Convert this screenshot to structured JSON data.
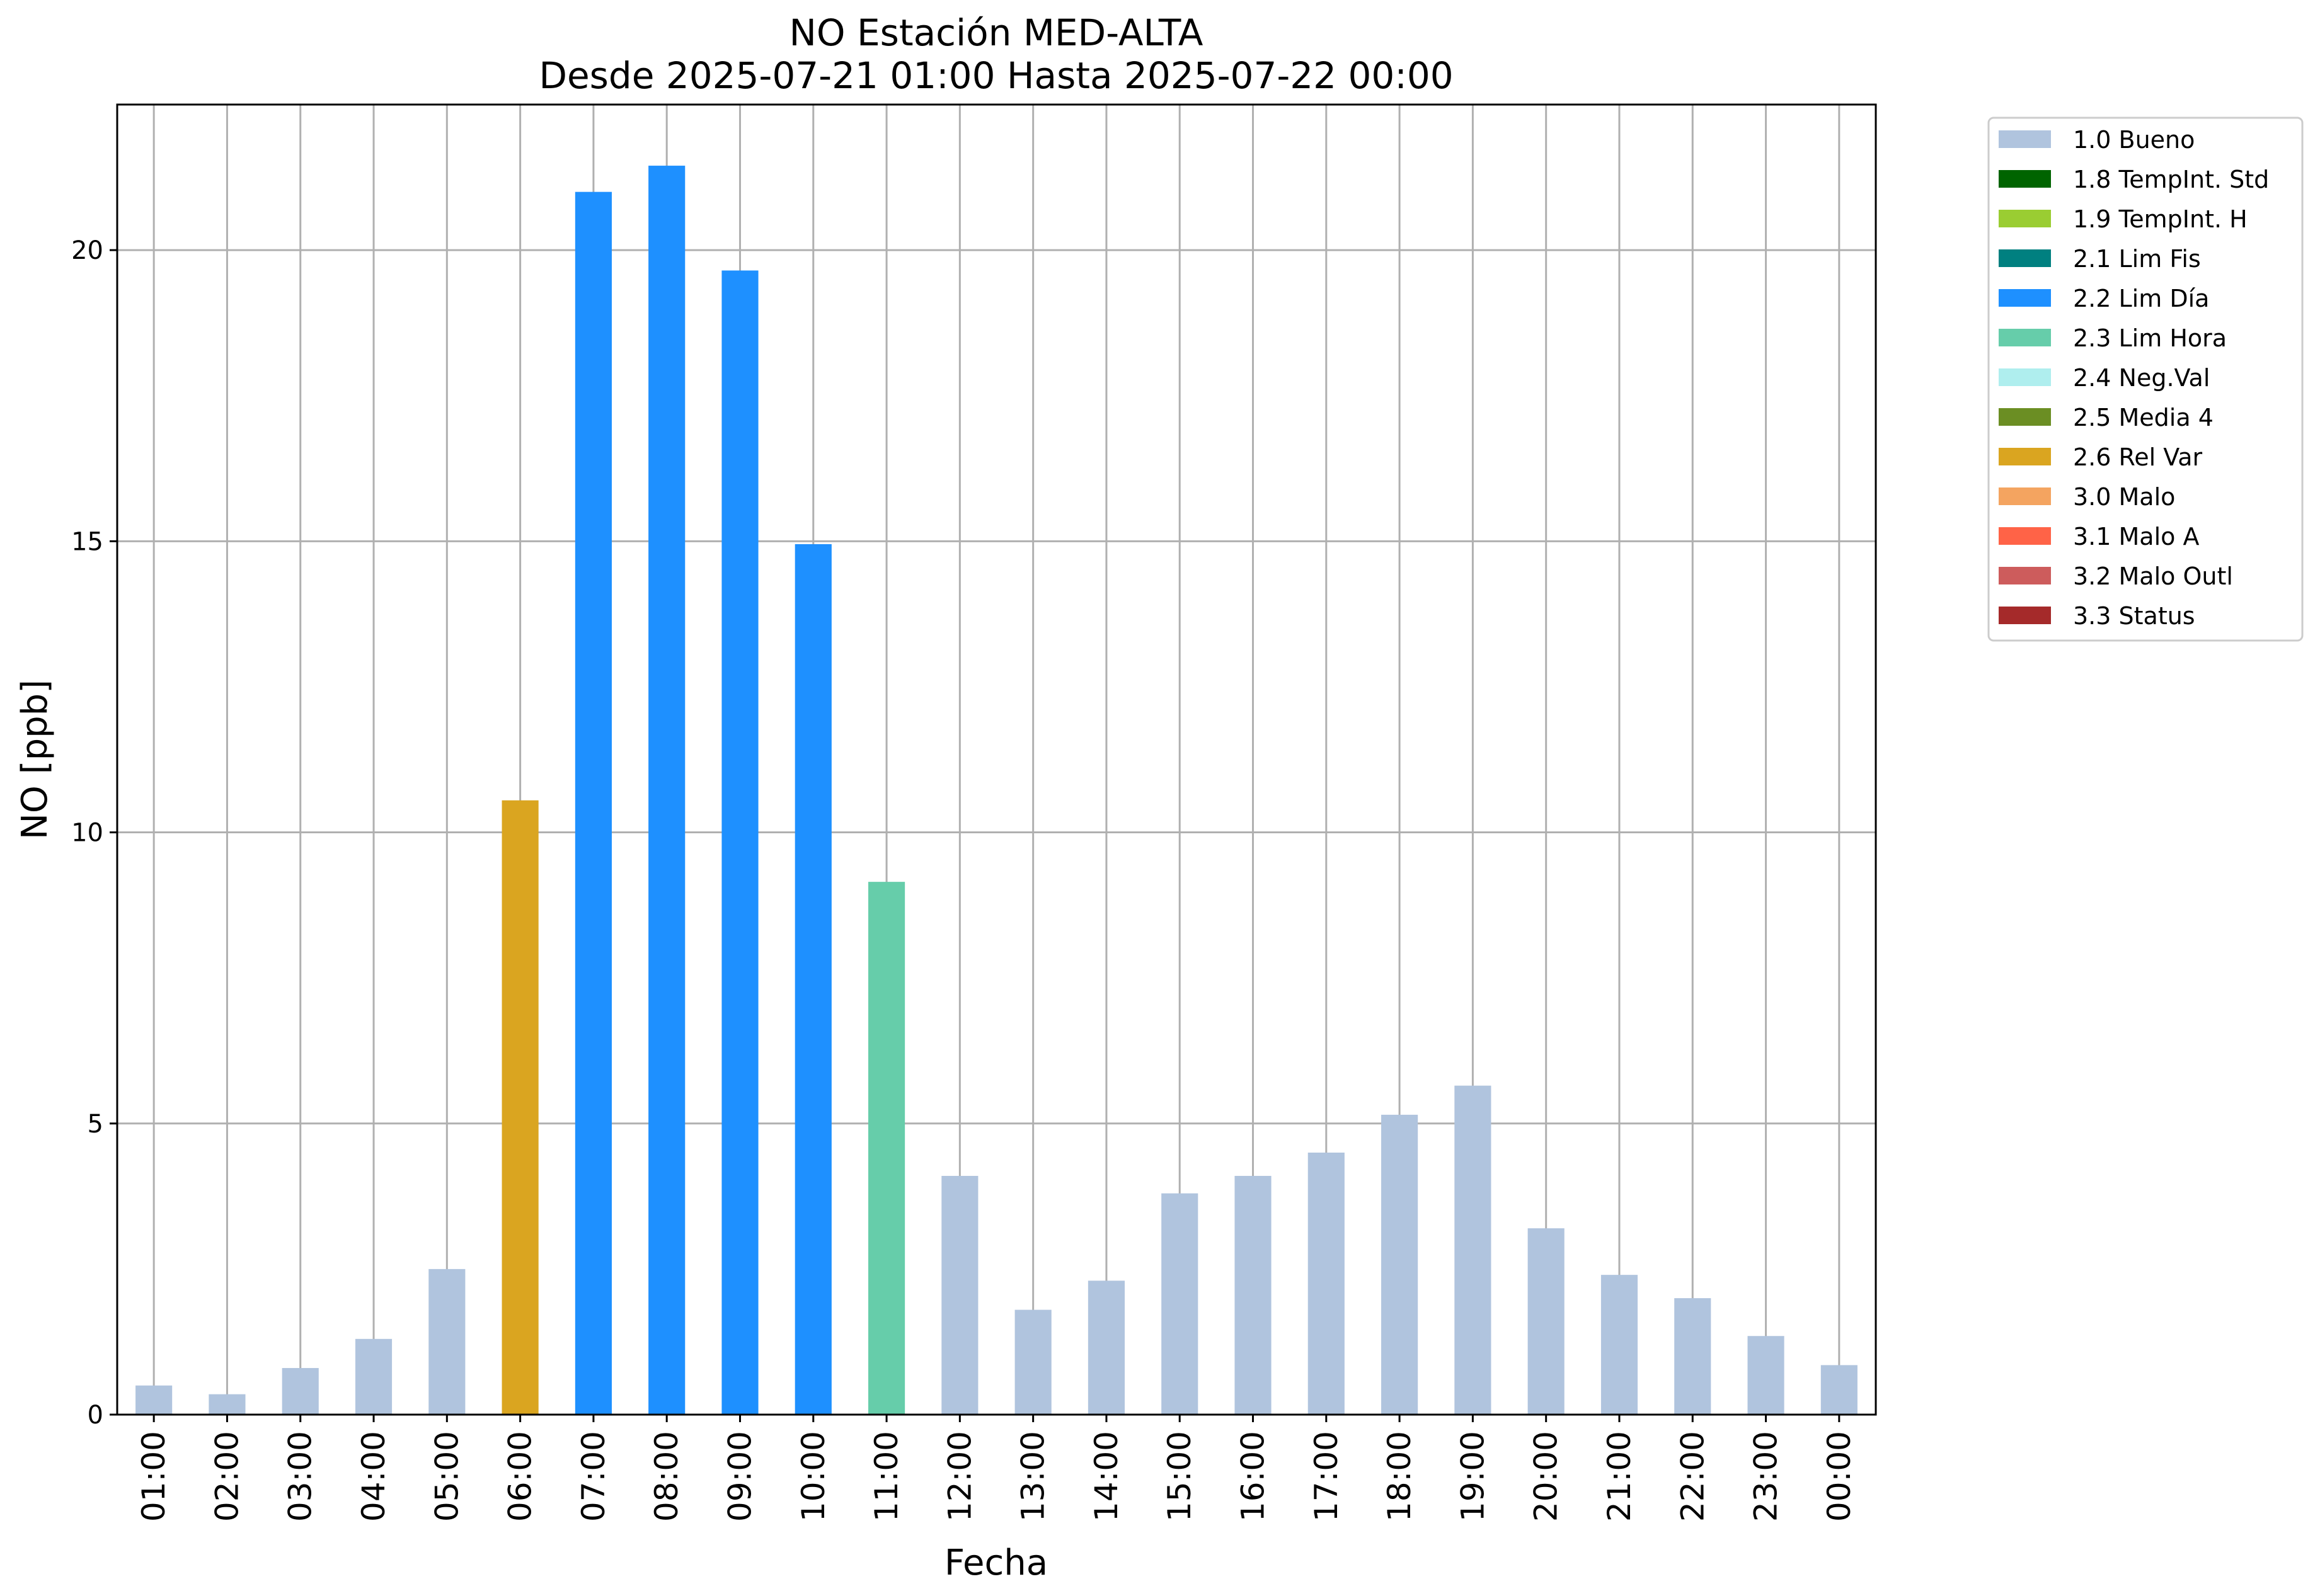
{
  "chart_data": {
    "type": "bar",
    "title": "NO Estación MED-ALTA",
    "subtitle": "Desde 2025-07-21 01:00 Hasta 2025-07-22 00:00",
    "xlabel": "Fecha",
    "ylabel": "NO [ppb]",
    "ylim": [
      0,
      22.5
    ],
    "yticks": [
      "0",
      "5",
      "10",
      "15",
      "20"
    ],
    "ytick_values": [
      0,
      5,
      10,
      15,
      20
    ],
    "grid": true,
    "legend_position": "outside-top-right",
    "categories": [
      "01:00",
      "02:00",
      "03:00",
      "04:00",
      "05:00",
      "06:00",
      "07:00",
      "08:00",
      "09:00",
      "10:00",
      "11:00",
      "12:00",
      "13:00",
      "14:00",
      "15:00",
      "16:00",
      "17:00",
      "18:00",
      "19:00",
      "20:00",
      "21:00",
      "22:00",
      "23:00",
      "00:00"
    ],
    "values": [
      0.5,
      0.35,
      0.8,
      1.3,
      2.5,
      10.55,
      21.0,
      21.45,
      19.65,
      14.95,
      9.15,
      4.1,
      1.8,
      2.3,
      3.8,
      4.1,
      4.5,
      5.15,
      5.65,
      3.2,
      2.4,
      2.0,
      1.35,
      0.85
    ],
    "flags": [
      "1.0 Bueno",
      "1.0 Bueno",
      "1.0 Bueno",
      "1.0 Bueno",
      "1.0 Bueno",
      "2.6 Rel Var",
      "2.2 Lim Día",
      "2.2 Lim Día",
      "2.2 Lim Día",
      "2.2 Lim Día",
      "2.3 Lim Hora",
      "1.0 Bueno",
      "1.0 Bueno",
      "1.0 Bueno",
      "1.0 Bueno",
      "1.0 Bueno",
      "1.0 Bueno",
      "1.0 Bueno",
      "1.0 Bueno",
      "1.0 Bueno",
      "1.0 Bueno",
      "1.0 Bueno",
      "1.0 Bueno",
      "1.0 Bueno"
    ],
    "legend": [
      {
        "name": "1.0 Bueno",
        "color": "#b0c4de"
      },
      {
        "name": "1.8 TempInt. Std",
        "color": "#006400"
      },
      {
        "name": "1.9 TempInt. H",
        "color": "#9acd32"
      },
      {
        "name": "2.1 Lim Fis",
        "color": "#008080"
      },
      {
        "name": "2.2 Lim Día",
        "color": "#1e90ff"
      },
      {
        "name": "2.3 Lim Hora",
        "color": "#66cdaa"
      },
      {
        "name": "2.4 Neg.Val",
        "color": "#afeeee"
      },
      {
        "name": "2.5 Media 4",
        "color": "#6b8e23"
      },
      {
        "name": "2.6 Rel Var",
        "color": "#daa520"
      },
      {
        "name": "3.0 Malo",
        "color": "#f4a460"
      },
      {
        "name": "3.1 Malo A",
        "color": "#ff6347"
      },
      {
        "name": "3.2 Malo Outl",
        "color": "#cd5c5c"
      },
      {
        "name": "3.3 Status",
        "color": "#a52a2a"
      }
    ]
  }
}
